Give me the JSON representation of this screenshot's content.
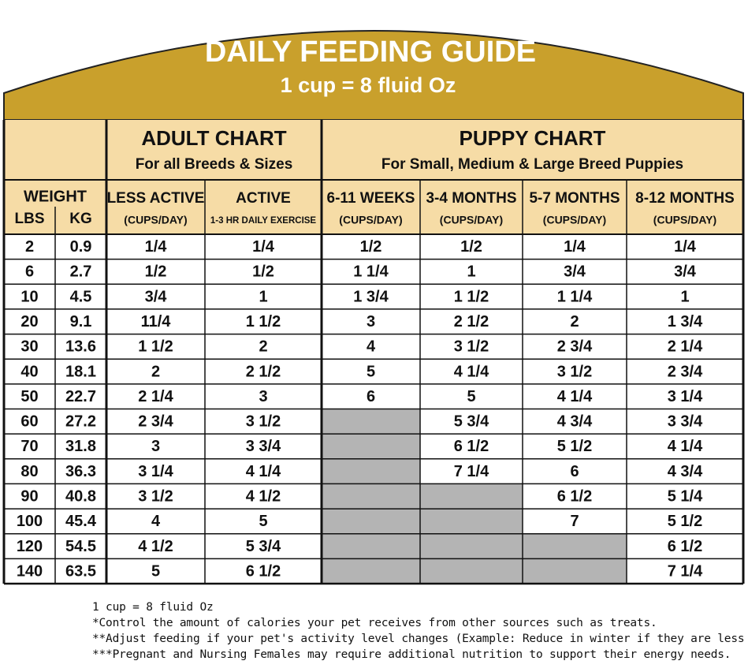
{
  "header": {
    "title": "DAILY FEEDING GUIDE",
    "subtitle": "1 cup = 8 fluid Oz"
  },
  "table": {
    "groups": [
      {
        "title": "ADULT CHART",
        "subtitle": "For all Breeds & Sizes"
      },
      {
        "title": "PUPPY CHART",
        "subtitle": "For Small, Medium & Large Breed Puppies"
      }
    ],
    "weight_label": "WEIGHT",
    "columns": [
      {
        "label": "LBS"
      },
      {
        "label": "KG"
      },
      {
        "label": "LESS ACTIVE",
        "unit": "(CUPS/DAY)"
      },
      {
        "label": "ACTIVE",
        "unit": "1-3 HR DAILY EXERCISE"
      },
      {
        "label": "6-11 WEEKS",
        "unit": "(CUPS/DAY)"
      },
      {
        "label": "3-4 MONTHS",
        "unit": "(CUPS/DAY)"
      },
      {
        "label": "5-7 MONTHS",
        "unit": "(CUPS/DAY)"
      },
      {
        "label": "8-12 MONTHS",
        "unit": "(CUPS/DAY)"
      }
    ],
    "rows": [
      [
        "2",
        "0.9",
        "1/4",
        "1/4",
        "1/2",
        "1/2",
        "1/4",
        "1/4"
      ],
      [
        "6",
        "2.7",
        "1/2",
        "1/2",
        "1 1/4",
        "1",
        "3/4",
        "3/4"
      ],
      [
        "10",
        "4.5",
        "3/4",
        "1",
        "1 3/4",
        "1 1/2",
        "1 1/4",
        "1"
      ],
      [
        "20",
        "9.1",
        "11/4",
        "1 1/2",
        "3",
        "2 1/2",
        "2",
        "1 3/4"
      ],
      [
        "30",
        "13.6",
        "1 1/2",
        "2",
        "4",
        "3 1/2",
        "2 3/4",
        "2 1/4"
      ],
      [
        "40",
        "18.1",
        "2",
        "2 1/2",
        "5",
        "4 1/4",
        "3 1/2",
        "2 3/4"
      ],
      [
        "50",
        "22.7",
        "2 1/4",
        "3",
        "6",
        "5",
        "4 1/4",
        "3 1/4"
      ],
      [
        "60",
        "27.2",
        "2 3/4",
        "3 1/2",
        null,
        "5 3/4",
        "4 3/4",
        "3 3/4"
      ],
      [
        "70",
        "31.8",
        "3",
        "3 3/4",
        null,
        "6 1/2",
        "5 1/2",
        "4 1/4"
      ],
      [
        "80",
        "36.3",
        "3 1/4",
        "4 1/4",
        null,
        "7 1/4",
        "6",
        "4 3/4"
      ],
      [
        "90",
        "40.8",
        "3 1/2",
        "4 1/2",
        null,
        null,
        "6 1/2",
        "5 1/4"
      ],
      [
        "100",
        "45.4",
        "4",
        "5",
        null,
        null,
        "7",
        "5 1/2"
      ],
      [
        "120",
        "54.5",
        "4 1/2",
        "5 3/4",
        null,
        null,
        null,
        "6 1/2"
      ],
      [
        "140",
        "63.5",
        "5",
        "6 1/2",
        null,
        null,
        null,
        "7 1/4"
      ]
    ]
  },
  "footnotes": [
    "1 cup = 8 fluid Oz",
    "*Control the amount of calories your pet receives from other sources such as treats.",
    "**Adjust feeding if your pet's activity level changes (Example: Reduce in winter if they are less active).",
    "***Pregnant and Nursing Females may require additional nutrition to support their energy needs."
  ]
}
